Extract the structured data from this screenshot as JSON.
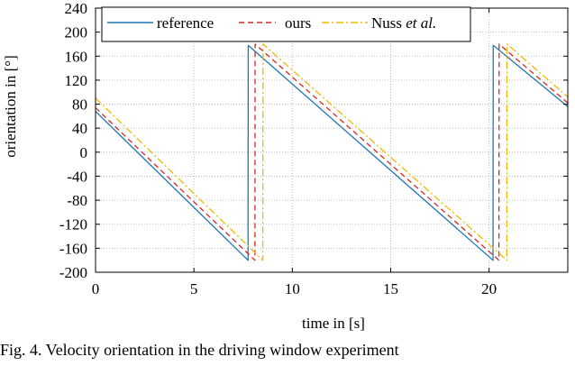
{
  "chart_data": {
    "type": "line",
    "title": "",
    "xlabel": "time in [s]",
    "ylabel": "orientation in [°]",
    "xlim": [
      0,
      24
    ],
    "ylim": [
      -200,
      240
    ],
    "xticks": [
      0,
      5,
      10,
      15,
      20
    ],
    "yticks": [
      -200,
      -160,
      -120,
      -80,
      -40,
      0,
      40,
      80,
      120,
      160,
      200,
      240
    ],
    "ytick_labels": [
      "-200",
      "-160",
      "-120",
      "-80",
      "-40",
      "0",
      "40",
      "80",
      "120",
      "160",
      "200",
      "240"
    ],
    "grid": true,
    "legend_position": "top",
    "series": [
      {
        "name": "reference",
        "color": "#1f77b4",
        "style": "solid",
        "x": [
          0,
          7.75,
          7.76,
          20.2,
          20.21,
          24
        ],
        "y": [
          68,
          -180,
          178,
          -180,
          178,
          76
        ]
      },
      {
        "name": "ours",
        "color": "#d62728",
        "style": "dashed",
        "x": [
          0,
          8.1,
          8.11,
          20.5,
          20.51,
          24
        ],
        "y": [
          74,
          -180,
          180,
          -180,
          180,
          82
        ]
      },
      {
        "name": "Nuss et al.",
        "color": "#f5b800",
        "style": "dashdot",
        "x": [
          0,
          8.5,
          8.51,
          20.9,
          20.91,
          24
        ],
        "y": [
          90,
          -180,
          180,
          -180,
          180,
          92
        ]
      }
    ]
  },
  "legend": {
    "reference": "reference",
    "ours": "ours",
    "nuss_main": "Nuss ",
    "nuss_italic": "et al."
  },
  "caption": "Fig. 4. Velocity orientation in the driving window experiment"
}
